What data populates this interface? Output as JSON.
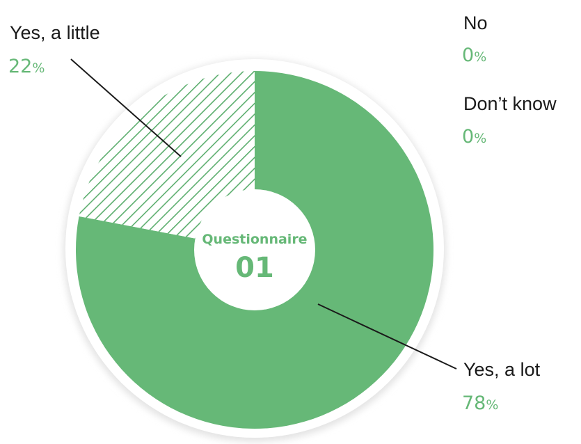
{
  "chart_data": {
    "type": "pie",
    "title": "",
    "center_label": {
      "line1": "Questionnaire",
      "line2": "01"
    },
    "slices": [
      {
        "label": "Yes, a lot",
        "value": 78,
        "display": "78",
        "unit": "%",
        "fill": "solid"
      },
      {
        "label": "Yes, a little",
        "value": 22,
        "display": "22",
        "unit": "%",
        "fill": "hatched"
      },
      {
        "label": "No",
        "value": 0,
        "display": "0",
        "unit": "%",
        "fill": "none"
      },
      {
        "label": "Don’t know",
        "value": 0,
        "display": "0",
        "unit": "%",
        "fill": "none"
      }
    ],
    "start_angle": "12 o'clock",
    "direction": "clockwise"
  },
  "colors": {
    "accent": "#66b877",
    "hatch_line": "#5cae6e",
    "text": "#1a1a1a",
    "outer_ring": "#ffffff",
    "ring_shadow": "#e3e3e3"
  }
}
